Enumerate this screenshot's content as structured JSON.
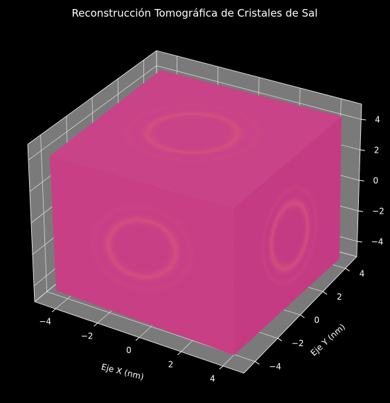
{
  "chart_data": {
    "type": "3d-volume",
    "title": "Reconstrucción Tomográfica de Cristales de Sal",
    "xlabel": "Eje X (nm)",
    "ylabel": "Eje Y (nm)",
    "zlabel": "",
    "xlim": [
      -5,
      5
    ],
    "ylim": [
      -5,
      5
    ],
    "zlim": [
      -5,
      5
    ],
    "x_ticks": [
      -4,
      -2,
      0,
      2,
      4
    ],
    "y_ticks": [
      -4,
      -2,
      0,
      2,
      4
    ],
    "z_ticks": [
      -4,
      -2,
      0,
      2,
      4
    ],
    "x_tick_labels": [
      "−4",
      "−2",
      "0",
      "2",
      "4"
    ],
    "y_tick_labels": [
      "−4",
      "−2",
      "0",
      "2",
      "4"
    ],
    "z_tick_labels": [
      "−4",
      "−2",
      "0",
      "2",
      "4"
    ],
    "grid": true,
    "background_color": "#000000",
    "pane_color": "#7a7a7a",
    "volume_color": "#cc3e86",
    "ring_color": "#d4537c"
  }
}
